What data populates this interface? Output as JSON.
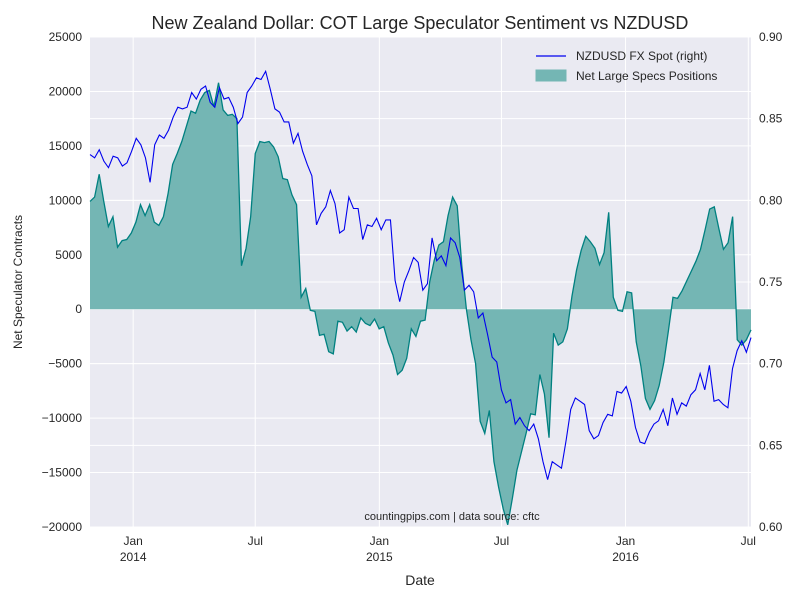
{
  "chart_data": {
    "type": "area",
    "title": "New Zealand Dollar: COT Large Speculator Sentiment vs NZDUSD",
    "xlabel": "Date",
    "ylabel": "Net Speculator Contracts",
    "watermark": "countingpips.com | data source: cftc",
    "ylim_left": [
      -20000,
      25000
    ],
    "ylim_right": [
      0.6,
      0.9
    ],
    "xlim": [
      "2013-10-29",
      "2016-07-05"
    ],
    "grid": true,
    "legend_position": "top-right",
    "left_ticks": [
      "−20000",
      "−15000",
      "−10000",
      "−5000",
      "0",
      "5000",
      "10000",
      "15000",
      "20000",
      "25000"
    ],
    "right_ticks": [
      "0.60",
      "0.65",
      "0.70",
      "0.75",
      "0.80",
      "0.85",
      "0.90"
    ],
    "x_ticks": [
      {
        "date": "2014-01-01",
        "label": "Jan",
        "year": "2014"
      },
      {
        "date": "2014-07-01",
        "label": "Jul",
        "year": ""
      },
      {
        "date": "2015-01-01",
        "label": "Jan",
        "year": "2015"
      },
      {
        "date": "2015-07-01",
        "label": "Jul",
        "year": ""
      },
      {
        "date": "2016-01-01",
        "label": "Jan",
        "year": "2016"
      },
      {
        "date": "2016-07-01",
        "label": "Jul",
        "year": ""
      }
    ],
    "colors": {
      "fill": "#74b6b4",
      "edge": "#008080",
      "line": "#0000ee"
    },
    "series": [
      {
        "name": "NZDUSD FX Spot (right)",
        "axis": "right",
        "values": [
          0.828,
          0.826,
          0.831,
          0.824,
          0.82,
          0.827,
          0.826,
          0.821,
          0.823,
          0.83,
          0.838,
          0.834,
          0.826,
          0.811,
          0.834,
          0.84,
          0.838,
          0.843,
          0.851,
          0.857,
          0.856,
          0.857,
          0.866,
          0.862,
          0.868,
          0.87,
          0.86,
          0.857,
          0.869,
          0.862,
          0.863,
          0.857,
          0.847,
          0.851,
          0.866,
          0.87,
          0.875,
          0.874,
          0.879,
          0.868,
          0.856,
          0.854,
          0.848,
          0.848,
          0.835,
          0.841,
          0.83,
          0.822,
          0.815,
          0.785,
          0.792,
          0.796,
          0.806,
          0.798,
          0.78,
          0.782,
          0.802,
          0.795,
          0.795,
          0.776,
          0.785,
          0.784,
          0.789,
          0.782,
          0.788,
          0.788,
          0.751,
          0.738,
          0.75,
          0.757,
          0.765,
          0.762,
          0.745,
          0.749,
          0.777,
          0.763,
          0.766,
          0.76,
          0.777,
          0.774,
          0.765,
          0.745,
          0.748,
          0.744,
          0.728,
          0.731,
          0.718,
          0.704,
          0.701,
          0.684,
          0.676,
          0.678,
          0.663,
          0.667,
          0.662,
          0.659,
          0.663,
          0.654,
          0.64,
          0.629,
          0.64,
          0.638,
          0.636,
          0.653,
          0.672,
          0.679,
          0.677,
          0.675,
          0.659,
          0.654,
          0.656,
          0.664,
          0.669,
          0.668,
          0.683,
          0.682,
          0.686,
          0.677,
          0.661,
          0.652,
          0.651,
          0.658,
          0.663,
          0.665,
          0.672,
          0.662,
          0.679,
          0.669,
          0.676,
          0.674,
          0.681,
          0.684,
          0.694,
          0.684,
          0.699,
          0.677,
          0.678,
          0.675,
          0.673,
          0.697,
          0.708,
          0.714,
          0.707,
          0.716
        ]
      },
      {
        "name": "Net Large Specs Positions",
        "axis": "left",
        "values": [
          9900,
          10300,
          12400,
          9900,
          7600,
          8500,
          5700,
          6300,
          6400,
          7000,
          8000,
          9600,
          8600,
          9600,
          8000,
          7700,
          8500,
          10600,
          13300,
          14300,
          15400,
          16800,
          18200,
          18000,
          19200,
          19900,
          20100,
          18600,
          20800,
          18300,
          17800,
          17900,
          17500,
          4000,
          5600,
          8500,
          14300,
          15400,
          15300,
          15400,
          14900,
          14000,
          12000,
          11900,
          10500,
          9600,
          1100,
          1900,
          -100,
          -200,
          -2400,
          -2300,
          -3900,
          -4100,
          -1100,
          -1200,
          -2000,
          -1600,
          -2100,
          -800,
          -1300,
          -1500,
          -900,
          -1800,
          -1600,
          -3100,
          -4200,
          -6000,
          -5600,
          -4500,
          -1800,
          -2500,
          -1100,
          -1000,
          2500,
          4500,
          5900,
          6200,
          8600,
          10300,
          9500,
          4000,
          0,
          -2800,
          -5000,
          -10300,
          -11400,
          -9300,
          -14000,
          -16300,
          -18300,
          -19800,
          -17400,
          -14800,
          -13100,
          -11400,
          -9600,
          -9700,
          -6000,
          -7800,
          -11800,
          -2200,
          -3300,
          -3000,
          -1800,
          1200,
          3600,
          5400,
          6700,
          6200,
          5600,
          4100,
          5200,
          8900,
          1100,
          -100,
          -200,
          1600,
          1500,
          -3000,
          -5200,
          -8200,
          -9200,
          -8400,
          -7000,
          -4900,
          -2000,
          1100,
          1000,
          1700,
          2600,
          3500,
          4400,
          5500,
          7300,
          9200,
          9400,
          7400,
          5500,
          6100,
          8500,
          -2800,
          -3300,
          -2800,
          -1900
        ]
      }
    ]
  }
}
